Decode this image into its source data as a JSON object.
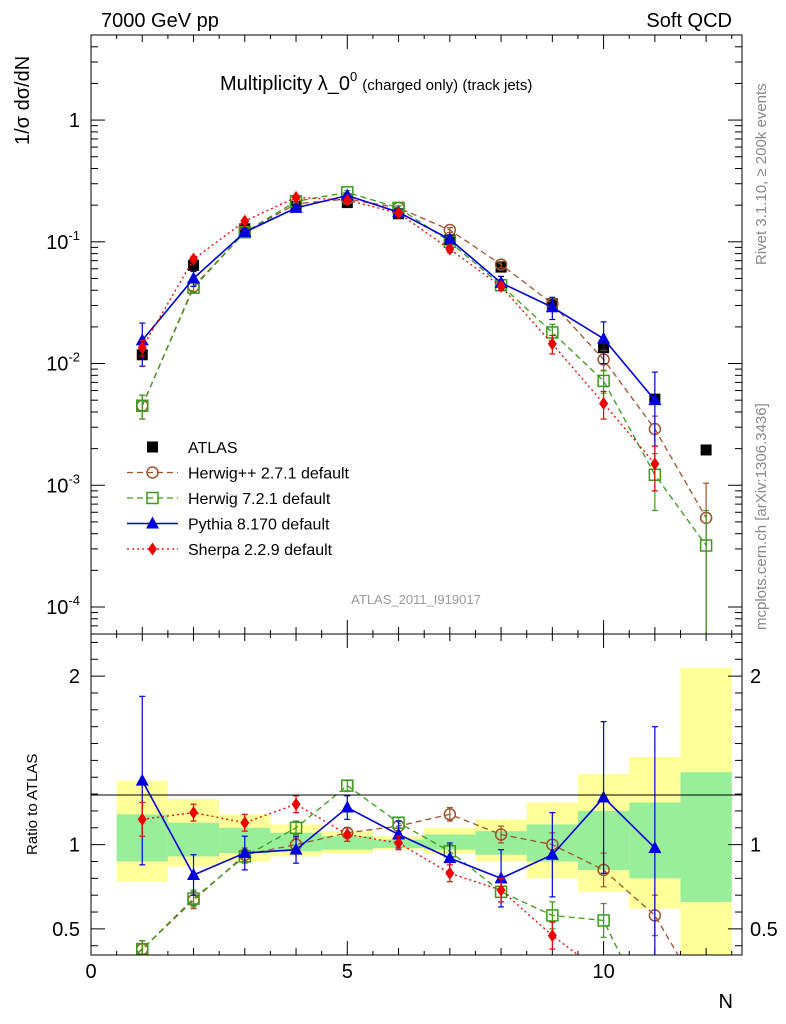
{
  "header": {
    "left": "7000 GeV pp",
    "right": "Soft QCD"
  },
  "side_labels": {
    "rivet": "Rivet 3.1.10, ≥ 200k events",
    "mcplots": "mcplots.cern.ch [arXiv:1306.3436]"
  },
  "colors": {
    "data": "#000000",
    "herwigpp": "#a0522d",
    "herwig7": "#3a9a1a",
    "pythia": "#0000dd",
    "sherpa": "#ee0000",
    "band_outer": "#ffff99",
    "band_inner": "#99ee99"
  },
  "chart_data": [
    {
      "type": "scatter",
      "panel": "main",
      "title": "Multiplicity λ_0",
      "title_sup": "0",
      "title_suffix": "(charged only) (track jets)",
      "ylabel": "1/σ dσ/dN",
      "yscale": "log",
      "xlim": [
        0,
        12.7
      ],
      "ylim": [
        6e-05,
        5
      ],
      "y_tick_labels": [
        {
          "mant": "10",
          "exp": "-4",
          "value": 0.0001
        },
        {
          "mant": "10",
          "exp": "-3",
          "value": 0.001
        },
        {
          "mant": "10",
          "exp": "-2",
          "value": 0.01
        },
        {
          "mant": "10",
          "exp": "-1",
          "value": 0.1
        },
        {
          "mant": "1",
          "exp": "",
          "value": 1
        }
      ],
      "watermark": "ATLAS_2011_I919017",
      "series": [
        {
          "name": "ATLAS",
          "key": "data",
          "marker": "square",
          "line": "none",
          "x": [
            1,
            2,
            3,
            4,
            5,
            6,
            7,
            8,
            9,
            10,
            11,
            12
          ],
          "y": [
            0.0118,
            0.064,
            0.128,
            0.195,
            0.21,
            0.17,
            0.104,
            0.062,
            0.031,
            0.0135,
            0.0051,
            0.00195
          ]
        },
        {
          "name": "Herwig++ 2.7.1 default",
          "key": "herwigpp",
          "marker": "circle-open",
          "line": "dashed",
          "x": [
            1,
            2,
            3,
            4,
            5,
            6,
            7,
            8,
            9,
            10,
            11,
            12
          ],
          "y": [
            0.0045,
            0.043,
            0.12,
            0.205,
            0.225,
            0.19,
            0.125,
            0.065,
            0.031,
            0.0108,
            0.0029,
            0.00054
          ],
          "err": [
            0.001,
            0.004,
            0.006,
            0.008,
            0.008,
            0.007,
            0.006,
            0.004,
            0.003,
            0.002,
            0.0008,
            0.0005
          ]
        },
        {
          "name": "Herwig 7.2.1 default",
          "key": "herwig7",
          "marker": "square-open",
          "line": "dashed",
          "x": [
            1,
            2,
            3,
            4,
            5,
            6,
            7,
            8,
            9,
            10,
            11,
            12
          ],
          "y": [
            0.0045,
            0.042,
            0.12,
            0.215,
            0.255,
            0.19,
            0.1,
            0.044,
            0.018,
            0.0072,
            0.00122,
            0.00032
          ],
          "err": [
            0.001,
            0.004,
            0.006,
            0.008,
            0.008,
            0.007,
            0.006,
            0.004,
            0.003,
            0.0015,
            0.0006,
            0.0003
          ]
        },
        {
          "name": "Pythia 8.170 default",
          "key": "pythia",
          "marker": "triangle",
          "line": "solid",
          "x": [
            1,
            2,
            3,
            4,
            5,
            6,
            7,
            8,
            9,
            10,
            11
          ],
          "y": [
            0.0155,
            0.05,
            0.12,
            0.19,
            0.24,
            0.175,
            0.105,
            0.046,
            0.029,
            0.016,
            0.005
          ],
          "err": [
            0.006,
            0.007,
            0.008,
            0.01,
            0.01,
            0.008,
            0.008,
            0.006,
            0.006,
            0.006,
            0.0035
          ]
        },
        {
          "name": "Sherpa 2.2.9 default",
          "key": "sherpa",
          "marker": "diamond",
          "line": "dotted",
          "x": [
            1,
            2,
            3,
            4,
            5,
            6,
            7,
            8,
            9,
            10,
            11
          ],
          "y": [
            0.0135,
            0.072,
            0.148,
            0.232,
            0.22,
            0.172,
            0.087,
            0.043,
            0.0145,
            0.0047,
            0.0015
          ],
          "err": [
            0.002,
            0.004,
            0.006,
            0.008,
            0.008,
            0.007,
            0.005,
            0.003,
            0.0025,
            0.0012,
            0.0006
          ]
        }
      ]
    },
    {
      "type": "scatter",
      "panel": "ratio",
      "ylabel": "Ratio to ATLAS",
      "xlabel": "N",
      "xlim": [
        0,
        12.7
      ],
      "ylim": [
        0.345,
        2.25
      ],
      "yscale": "linear",
      "x_tick_labels": [
        "0",
        "5",
        "10"
      ],
      "x_tick_values": [
        0,
        5,
        10
      ],
      "y_tick_labels": [
        "0.5",
        "1",
        "2"
      ],
      "y_tick_values": [
        0.5,
        1,
        2
      ],
      "bands": {
        "x_edges": [
          0.5,
          1.5,
          2.5,
          3.5,
          4.5,
          5.5,
          6.5,
          7.5,
          8.5,
          9.5,
          10.5,
          11.5,
          12.5
        ],
        "outer_lo": [
          0.78,
          0.87,
          0.9,
          0.93,
          0.95,
          0.97,
          0.95,
          0.9,
          0.8,
          0.72,
          0.62,
          0.34
        ],
        "outer_hi": [
          1.38,
          1.27,
          1.18,
          1.12,
          1.08,
          1.05,
          1.1,
          1.15,
          1.25,
          1.42,
          1.52,
          2.05
        ],
        "inner_lo": [
          0.9,
          0.93,
          0.95,
          0.96,
          0.97,
          0.98,
          0.97,
          0.94,
          0.9,
          0.85,
          0.8,
          0.66
        ],
        "inner_hi": [
          1.18,
          1.13,
          1.1,
          1.07,
          1.05,
          1.03,
          1.06,
          1.08,
          1.12,
          1.2,
          1.25,
          1.43
        ]
      },
      "series": [
        {
          "name": "Herwig++ 2.7.1 default",
          "key": "herwigpp",
          "x": [
            0.6,
            1,
            2,
            3,
            4,
            5,
            6,
            7,
            8,
            9,
            10,
            11,
            11.5
          ],
          "y": [
            0.28,
            0.38,
            0.67,
            0.94,
            1.0,
            1.07,
            1.11,
            1.18,
            1.06,
            1.0,
            0.85,
            0.58,
            0.32
          ],
          "err": [
            0,
            0.05,
            0.05,
            0.04,
            0.04,
            0.03,
            0.03,
            0.04,
            0.05,
            0.07,
            0.1,
            0.12,
            0
          ],
          "marker_count": 12
        },
        {
          "name": "Herwig 7.2.1 default",
          "key": "herwig7",
          "x": [
            0.6,
            1,
            2,
            3,
            4,
            5,
            6,
            7,
            8,
            9,
            10,
            10.4
          ],
          "y": [
            0.28,
            0.38,
            0.68,
            0.93,
            1.1,
            1.35,
            1.13,
            0.96,
            0.72,
            0.58,
            0.55,
            0.3
          ],
          "err": [
            0,
            0.05,
            0.05,
            0.04,
            0.04,
            0.03,
            0.03,
            0.04,
            0.06,
            0.08,
            0.1,
            0
          ],
          "marker_count": 10
        },
        {
          "name": "Pythia 8.170 default",
          "key": "pythia",
          "x": [
            1,
            2,
            3,
            4,
            5,
            6,
            7,
            8,
            9,
            10,
            11
          ],
          "y": [
            1.38,
            0.82,
            0.95,
            0.97,
            1.22,
            1.06,
            0.92,
            0.8,
            0.94,
            1.28,
            0.98
          ],
          "err": [
            0.5,
            0.12,
            0.1,
            0.08,
            0.07,
            0.08,
            0.09,
            0.17,
            0.25,
            0.45,
            0.72
          ]
        },
        {
          "name": "Sherpa 2.2.9 default",
          "key": "sherpa",
          "x": [
            1,
            2,
            3,
            4,
            5,
            6,
            7,
            8,
            9,
            9.7
          ],
          "y": [
            1.15,
            1.19,
            1.13,
            1.24,
            1.06,
            1.01,
            0.83,
            0.73,
            0.46,
            0.3
          ],
          "err": [
            0.1,
            0.05,
            0.05,
            0.05,
            0.04,
            0.04,
            0.05,
            0.07,
            0.08,
            0
          ],
          "marker_count": 9
        }
      ]
    }
  ]
}
